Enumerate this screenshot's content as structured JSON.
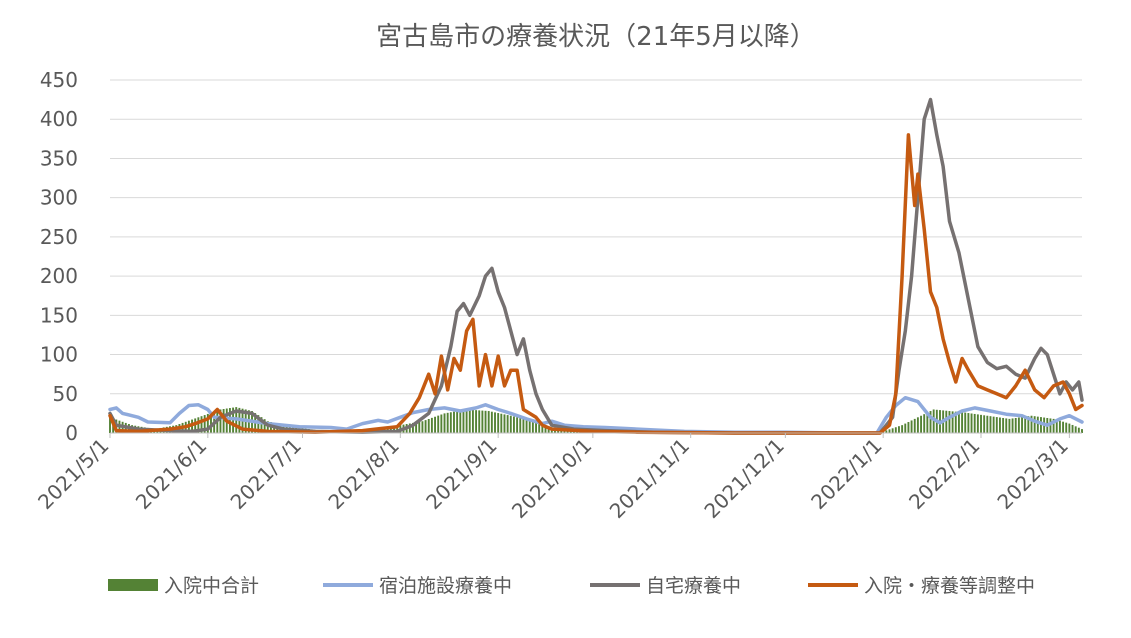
{
  "chart_data": {
    "type": "line",
    "title": "宮古島市の療養状況（21年5月以降）",
    "xlabel": "",
    "ylabel": "",
    "ylim": [
      0,
      450
    ],
    "yticks": [
      0,
      50,
      100,
      150,
      200,
      250,
      300,
      350,
      400,
      450
    ],
    "x_range": [
      "2021-05-01",
      "2022-03-05"
    ],
    "xticks": [
      {
        "date": "2021-05-01",
        "label": "2021/5/1"
      },
      {
        "date": "2021-06-01",
        "label": "2021/6/1"
      },
      {
        "date": "2021-07-01",
        "label": "2021/7/1"
      },
      {
        "date": "2021-08-01",
        "label": "2021/8/1"
      },
      {
        "date": "2021-09-01",
        "label": "2021/9/1"
      },
      {
        "date": "2021-10-01",
        "label": "2021/10/1"
      },
      {
        "date": "2021-11-01",
        "label": "2021/11/1"
      },
      {
        "date": "2021-12-01",
        "label": "2021/12/1"
      },
      {
        "date": "2022-01-01",
        "label": "2022/1/1"
      },
      {
        "date": "2022-02-01",
        "label": "2022/2/1"
      },
      {
        "date": "2022-03-01",
        "label": "2022/3/1"
      }
    ],
    "grid": true,
    "legend_position": "bottom",
    "series": [
      {
        "name": "入院中合計",
        "type": "bar",
        "color": "#548235",
        "points": [
          [
            "2021-05-01",
            20
          ],
          [
            "2021-05-08",
            10
          ],
          [
            "2021-05-15",
            5
          ],
          [
            "2021-05-22",
            10
          ],
          [
            "2021-05-29",
            20
          ],
          [
            "2021-06-05",
            30
          ],
          [
            "2021-06-10",
            33
          ],
          [
            "2021-06-15",
            28
          ],
          [
            "2021-06-20",
            15
          ],
          [
            "2021-06-27",
            8
          ],
          [
            "2021-07-05",
            4
          ],
          [
            "2021-07-15",
            2
          ],
          [
            "2021-07-25",
            3
          ],
          [
            "2021-08-01",
            10
          ],
          [
            "2021-08-08",
            15
          ],
          [
            "2021-08-15",
            25
          ],
          [
            "2021-08-22",
            30
          ],
          [
            "2021-08-29",
            28
          ],
          [
            "2021-09-05",
            22
          ],
          [
            "2021-09-12",
            15
          ],
          [
            "2021-09-19",
            6
          ],
          [
            "2021-09-26",
            3
          ],
          [
            "2021-10-05",
            2
          ],
          [
            "2021-10-15",
            1
          ],
          [
            "2021-11-01",
            0
          ],
          [
            "2021-12-01",
            0
          ],
          [
            "2022-01-01",
            2
          ],
          [
            "2022-01-07",
            10
          ],
          [
            "2022-01-12",
            20
          ],
          [
            "2022-01-17",
            30
          ],
          [
            "2022-01-22",
            28
          ],
          [
            "2022-01-27",
            26
          ],
          [
            "2022-02-03",
            22
          ],
          [
            "2022-02-10",
            18
          ],
          [
            "2022-02-17",
            22
          ],
          [
            "2022-02-24",
            18
          ],
          [
            "2022-03-01",
            12
          ],
          [
            "2022-03-05",
            5
          ]
        ]
      },
      {
        "name": "宿泊施設療養中",
        "type": "line",
        "color": "#8FAADC",
        "points": [
          [
            "2021-05-01",
            30
          ],
          [
            "2021-05-03",
            32
          ],
          [
            "2021-05-05",
            25
          ],
          [
            "2021-05-10",
            20
          ],
          [
            "2021-05-13",
            14
          ],
          [
            "2021-05-20",
            13
          ],
          [
            "2021-05-23",
            25
          ],
          [
            "2021-05-26",
            35
          ],
          [
            "2021-05-29",
            36
          ],
          [
            "2021-06-01",
            30
          ],
          [
            "2021-06-03",
            20
          ],
          [
            "2021-06-10",
            18
          ],
          [
            "2021-06-20",
            12
          ],
          [
            "2021-06-30",
            8
          ],
          [
            "2021-07-10",
            7
          ],
          [
            "2021-07-15",
            5
          ],
          [
            "2021-07-20",
            12
          ],
          [
            "2021-07-25",
            16
          ],
          [
            "2021-07-28",
            14
          ],
          [
            "2021-08-01",
            20
          ],
          [
            "2021-08-05",
            26
          ],
          [
            "2021-08-10",
            30
          ],
          [
            "2021-08-15",
            32
          ],
          [
            "2021-08-20",
            28
          ],
          [
            "2021-08-25",
            32
          ],
          [
            "2021-08-28",
            36
          ],
          [
            "2021-09-01",
            30
          ],
          [
            "2021-09-05",
            25
          ],
          [
            "2021-09-10",
            18
          ],
          [
            "2021-09-15",
            12
          ],
          [
            "2021-09-18",
            15
          ],
          [
            "2021-09-22",
            10
          ],
          [
            "2021-09-28",
            8
          ],
          [
            "2021-10-05",
            7
          ],
          [
            "2021-10-10",
            6
          ],
          [
            "2021-10-20",
            4
          ],
          [
            "2021-10-30",
            2
          ],
          [
            "2021-11-15",
            1
          ],
          [
            "2021-12-01",
            1
          ],
          [
            "2021-12-20",
            0
          ],
          [
            "2021-12-30",
            0
          ],
          [
            "2022-01-02",
            20
          ],
          [
            "2022-01-05",
            35
          ],
          [
            "2022-01-08",
            45
          ],
          [
            "2022-01-12",
            40
          ],
          [
            "2022-01-16",
            20
          ],
          [
            "2022-01-19",
            13
          ],
          [
            "2022-01-22",
            20
          ],
          [
            "2022-01-26",
            28
          ],
          [
            "2022-01-30",
            32
          ],
          [
            "2022-02-04",
            28
          ],
          [
            "2022-02-09",
            24
          ],
          [
            "2022-02-14",
            22
          ],
          [
            "2022-02-18",
            15
          ],
          [
            "2022-02-22",
            10
          ],
          [
            "2022-02-26",
            18
          ],
          [
            "2022-03-01",
            22
          ],
          [
            "2022-03-05",
            14
          ]
        ]
      },
      {
        "name": "自宅療養中",
        "type": "line",
        "color": "#767171",
        "points": [
          [
            "2021-05-01",
            25
          ],
          [
            "2021-05-03",
            10
          ],
          [
            "2021-05-10",
            5
          ],
          [
            "2021-05-20",
            3
          ],
          [
            "2021-05-27",
            2
          ],
          [
            "2021-06-01",
            5
          ],
          [
            "2021-06-05",
            20
          ],
          [
            "2021-06-10",
            28
          ],
          [
            "2021-06-15",
            25
          ],
          [
            "2021-06-20",
            10
          ],
          [
            "2021-06-25",
            5
          ],
          [
            "2021-07-05",
            2
          ],
          [
            "2021-07-20",
            1
          ],
          [
            "2021-07-31",
            2
          ],
          [
            "2021-08-05",
            10
          ],
          [
            "2021-08-10",
            25
          ],
          [
            "2021-08-14",
            60
          ],
          [
            "2021-08-17",
            110
          ],
          [
            "2021-08-19",
            155
          ],
          [
            "2021-08-21",
            165
          ],
          [
            "2021-08-23",
            150
          ],
          [
            "2021-08-26",
            175
          ],
          [
            "2021-08-28",
            200
          ],
          [
            "2021-08-30",
            210
          ],
          [
            "2021-09-01",
            180
          ],
          [
            "2021-09-03",
            160
          ],
          [
            "2021-09-05",
            130
          ],
          [
            "2021-09-07",
            100
          ],
          [
            "2021-09-09",
            120
          ],
          [
            "2021-09-11",
            80
          ],
          [
            "2021-09-13",
            50
          ],
          [
            "2021-09-15",
            30
          ],
          [
            "2021-09-18",
            10
          ],
          [
            "2021-09-25",
            5
          ],
          [
            "2021-10-05",
            3
          ],
          [
            "2021-10-20",
            1
          ],
          [
            "2021-11-15",
            0
          ],
          [
            "2021-12-15",
            0
          ],
          [
            "2021-12-31",
            0
          ],
          [
            "2022-01-04",
            20
          ],
          [
            "2022-01-06",
            80
          ],
          [
            "2022-01-08",
            130
          ],
          [
            "2022-01-10",
            200
          ],
          [
            "2022-01-12",
            300
          ],
          [
            "2022-01-14",
            400
          ],
          [
            "2022-01-16",
            425
          ],
          [
            "2022-01-18",
            380
          ],
          [
            "2022-01-20",
            340
          ],
          [
            "2022-01-22",
            270
          ],
          [
            "2022-01-25",
            230
          ],
          [
            "2022-01-28",
            170
          ],
          [
            "2022-01-31",
            110
          ],
          [
            "2022-02-03",
            90
          ],
          [
            "2022-02-06",
            82
          ],
          [
            "2022-02-09",
            85
          ],
          [
            "2022-02-12",
            75
          ],
          [
            "2022-02-15",
            70
          ],
          [
            "2022-02-18",
            95
          ],
          [
            "2022-02-20",
            108
          ],
          [
            "2022-02-22",
            100
          ],
          [
            "2022-02-24",
            75
          ],
          [
            "2022-02-26",
            50
          ],
          [
            "2022-02-28",
            65
          ],
          [
            "2022-03-02",
            55
          ],
          [
            "2022-03-04",
            65
          ],
          [
            "2022-03-05",
            42
          ]
        ]
      },
      {
        "name": "入院・療養等調整中",
        "type": "line",
        "color": "#C55A11",
        "points": [
          [
            "2021-05-01",
            22
          ],
          [
            "2021-05-03",
            3
          ],
          [
            "2021-05-10",
            2
          ],
          [
            "2021-05-20",
            5
          ],
          [
            "2021-05-25",
            8
          ],
          [
            "2021-05-28",
            12
          ],
          [
            "2021-06-01",
            18
          ],
          [
            "2021-06-04",
            30
          ],
          [
            "2021-06-07",
            15
          ],
          [
            "2021-06-12",
            5
          ],
          [
            "2021-06-20",
            2
          ],
          [
            "2021-07-05",
            1
          ],
          [
            "2021-07-20",
            3
          ],
          [
            "2021-07-31",
            8
          ],
          [
            "2021-08-04",
            25
          ],
          [
            "2021-08-07",
            45
          ],
          [
            "2021-08-10",
            75
          ],
          [
            "2021-08-12",
            50
          ],
          [
            "2021-08-14",
            98
          ],
          [
            "2021-08-16",
            55
          ],
          [
            "2021-08-18",
            95
          ],
          [
            "2021-08-20",
            80
          ],
          [
            "2021-08-22",
            130
          ],
          [
            "2021-08-24",
            145
          ],
          [
            "2021-08-26",
            60
          ],
          [
            "2021-08-28",
            100
          ],
          [
            "2021-08-30",
            60
          ],
          [
            "2021-09-01",
            98
          ],
          [
            "2021-09-03",
            60
          ],
          [
            "2021-09-05",
            80
          ],
          [
            "2021-09-07",
            80
          ],
          [
            "2021-09-09",
            30
          ],
          [
            "2021-09-11",
            25
          ],
          [
            "2021-09-13",
            20
          ],
          [
            "2021-09-15",
            10
          ],
          [
            "2021-09-18",
            5
          ],
          [
            "2021-10-01",
            2
          ],
          [
            "2021-10-15",
            1
          ],
          [
            "2021-11-15",
            0
          ],
          [
            "2021-12-31",
            0
          ],
          [
            "2022-01-03",
            10
          ],
          [
            "2022-01-05",
            50
          ],
          [
            "2022-01-07",
            200
          ],
          [
            "2022-01-09",
            380
          ],
          [
            "2022-01-11",
            290
          ],
          [
            "2022-01-12",
            330
          ],
          [
            "2022-01-14",
            260
          ],
          [
            "2022-01-16",
            180
          ],
          [
            "2022-01-18",
            160
          ],
          [
            "2022-01-20",
            120
          ],
          [
            "2022-01-22",
            90
          ],
          [
            "2022-01-24",
            65
          ],
          [
            "2022-01-26",
            95
          ],
          [
            "2022-01-28",
            80
          ],
          [
            "2022-01-31",
            60
          ],
          [
            "2022-02-03",
            55
          ],
          [
            "2022-02-06",
            50
          ],
          [
            "2022-02-09",
            45
          ],
          [
            "2022-02-12",
            60
          ],
          [
            "2022-02-15",
            80
          ],
          [
            "2022-02-18",
            55
          ],
          [
            "2022-02-21",
            45
          ],
          [
            "2022-02-24",
            60
          ],
          [
            "2022-02-27",
            65
          ],
          [
            "2022-03-01",
            50
          ],
          [
            "2022-03-03",
            30
          ],
          [
            "2022-03-05",
            35
          ]
        ]
      }
    ]
  }
}
